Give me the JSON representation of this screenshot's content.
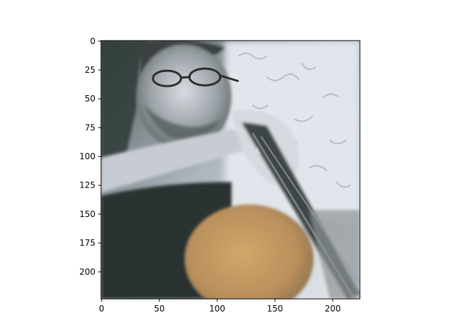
{
  "chart_data": {
    "type": "heatmap",
    "title": "",
    "xlabel": "",
    "ylabel": "",
    "image_size": [
      224,
      224
    ],
    "xlim": [
      -0.5,
      223.5
    ],
    "ylim": [
      223.5,
      -0.5
    ],
    "y_axis_inverted": true,
    "x_ticks": [
      0,
      50,
      100,
      150,
      200
    ],
    "x_tick_labels": [
      "0",
      "50",
      "100",
      "150",
      "200"
    ],
    "y_ticks": [
      0,
      25,
      50,
      75,
      100,
      125,
      150,
      175,
      200
    ],
    "y_tick_labels": [
      "0",
      "25",
      "50",
      "75",
      "100",
      "125",
      "150",
      "175",
      "200"
    ],
    "grid": false,
    "image_content": "stylized photo of a man with glasses and a beard holding a stringed instrument with a round body",
    "colors": {
      "frame": "#000000",
      "background": "#ffffff",
      "image_light": "#dfe3ea",
      "image_dark": "#2b302f",
      "instrument_body": "#c49a62"
    }
  }
}
